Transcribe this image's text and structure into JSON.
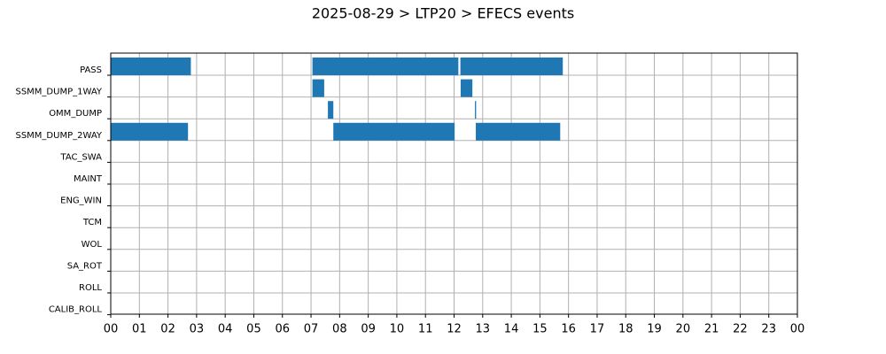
{
  "chart_data": {
    "type": "gantt",
    "title": "2025-08-29 > LTP20 > EFECS events",
    "categories": [
      "PASS",
      "SSMM_DUMP_1WAY",
      "OMM_DUMP",
      "SSMM_DUMP_2WAY",
      "TAC_SWA",
      "MAINT",
      "ENG_WIN",
      "TCM",
      "WOL",
      "SA_ROT",
      "ROLL",
      "CALIB_ROLL"
    ],
    "bars": [
      [
        [
          0,
          2.8
        ],
        [
          7.05,
          12.15
        ],
        [
          12.22,
          15.8
        ]
      ],
      [
        [
          7.05,
          7.46
        ],
        [
          12.23,
          12.64
        ]
      ],
      [
        [
          7.59,
          7.78
        ],
        [
          12.73,
          12.77
        ]
      ],
      [
        [
          0,
          2.7
        ],
        [
          7.78,
          12.02
        ],
        [
          12.76,
          15.71
        ]
      ],
      [],
      [],
      [],
      [],
      [],
      [],
      [],
      []
    ],
    "color": "#1f77b4",
    "xlim": [
      0,
      24
    ],
    "xticks": [
      {
        "value": 0,
        "label": "00"
      },
      {
        "value": 1,
        "label": "01"
      },
      {
        "value": 2,
        "label": "02"
      },
      {
        "value": 3,
        "label": "03"
      },
      {
        "value": 4,
        "label": "04"
      },
      {
        "value": 5,
        "label": "05"
      },
      {
        "value": 6,
        "label": "06"
      },
      {
        "value": 7,
        "label": "07"
      },
      {
        "value": 8,
        "label": "08"
      },
      {
        "value": 9,
        "label": "09"
      },
      {
        "value": 10,
        "label": "10"
      },
      {
        "value": 11,
        "label": "11"
      },
      {
        "value": 12,
        "label": "12"
      },
      {
        "value": 13,
        "label": "13"
      },
      {
        "value": 14,
        "label": "14"
      },
      {
        "value": 15,
        "label": "15"
      },
      {
        "value": 16,
        "label": "16"
      },
      {
        "value": 17,
        "label": "17"
      },
      {
        "value": 18,
        "label": "18"
      },
      {
        "value": 19,
        "label": "19"
      },
      {
        "value": 20,
        "label": "20"
      },
      {
        "value": 21,
        "label": "21"
      },
      {
        "value": 22,
        "label": "22"
      },
      {
        "value": 23,
        "label": "23"
      },
      {
        "value": 24,
        "label": "00"
      }
    ],
    "grid": true
  }
}
